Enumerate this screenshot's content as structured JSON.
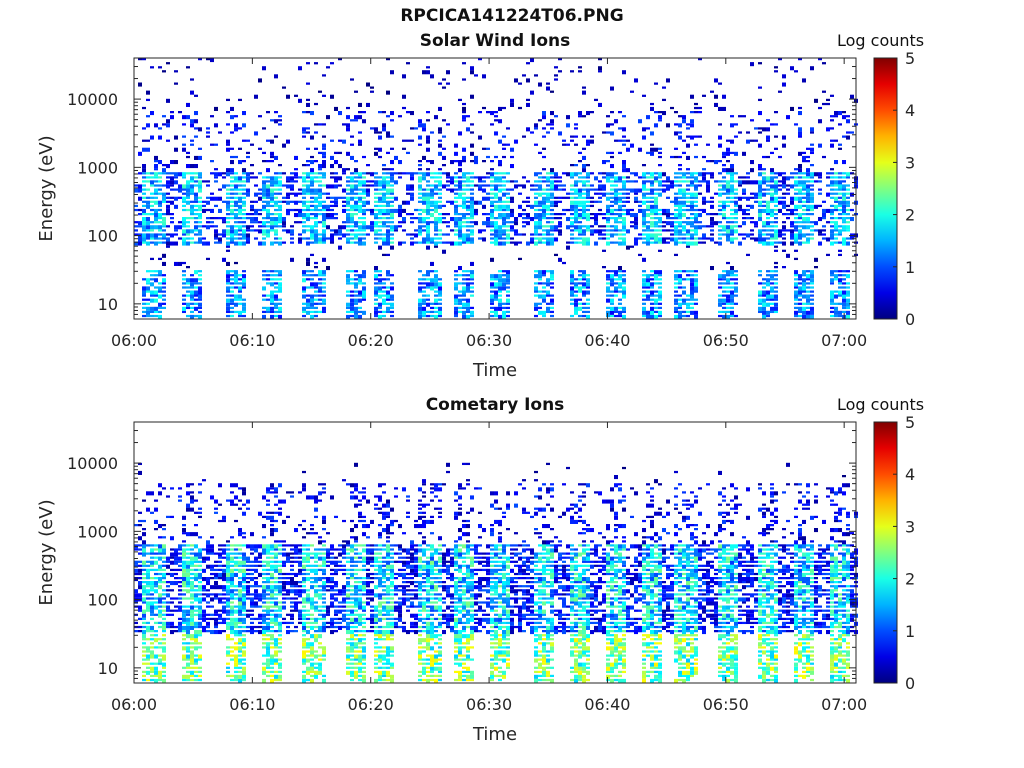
{
  "title": "RPCICA141224T06.PNG",
  "colors": {
    "colormap": "jet",
    "axis": "#262626",
    "background": "#ffffff"
  },
  "colorbar": {
    "label": "Log counts",
    "ticks": [
      "0",
      "1",
      "2",
      "3",
      "4",
      "5"
    ],
    "range": [
      0,
      5
    ]
  },
  "chart_data": [
    {
      "type": "heatmap",
      "title": "Solar Wind Ions",
      "xlabel": "Time",
      "ylabel": "Energy (eV)",
      "x_ticks": [
        "06:00",
        "06:10",
        "06:20",
        "06:30",
        "06:40",
        "06:50",
        "07:00"
      ],
      "y_ticks": [
        "10",
        "100",
        "1000",
        "10000"
      ],
      "y_scale": "log",
      "ylim": [
        6,
        40000
      ],
      "xlim": [
        "06:00",
        "07:01"
      ],
      "z_label": "Log counts",
      "z_range": [
        0,
        5
      ],
      "sweeps_minutes": [
        1.5,
        4.7,
        8.5,
        11.5,
        15.0,
        18.5,
        21.0,
        24.8,
        27.8,
        30.8,
        34.5,
        37.5,
        40.5,
        43.5,
        46.5,
        50.0,
        53.5,
        56.5,
        59.5
      ],
      "beam_energy_eV": [
        150,
        400
      ],
      "low_energy_band_eV": [
        6,
        30
      ],
      "max_level": 3.0,
      "grid": false
    },
    {
      "type": "heatmap",
      "title": "Cometary Ions",
      "xlabel": "Time",
      "ylabel": "Energy (eV)",
      "x_ticks": [
        "06:00",
        "06:10",
        "06:20",
        "06:30",
        "06:40",
        "06:50",
        "07:00"
      ],
      "y_ticks": [
        "10",
        "100",
        "1000",
        "10000"
      ],
      "y_scale": "log",
      "ylim": [
        6,
        40000
      ],
      "xlim": [
        "06:00",
        "07:01"
      ],
      "z_label": "Log counts",
      "z_range": [
        0,
        5
      ],
      "sweeps_minutes": [
        1.5,
        4.7,
        8.5,
        11.5,
        15.0,
        18.5,
        21.0,
        24.8,
        27.8,
        30.8,
        34.5,
        37.5,
        40.5,
        43.5,
        46.5,
        50.0,
        53.5,
        56.5,
        59.5
      ],
      "beam_energy_eV": [
        30,
        300
      ],
      "low_energy_band_eV": [
        6,
        30
      ],
      "max_level": 3.5,
      "grid": false
    }
  ]
}
